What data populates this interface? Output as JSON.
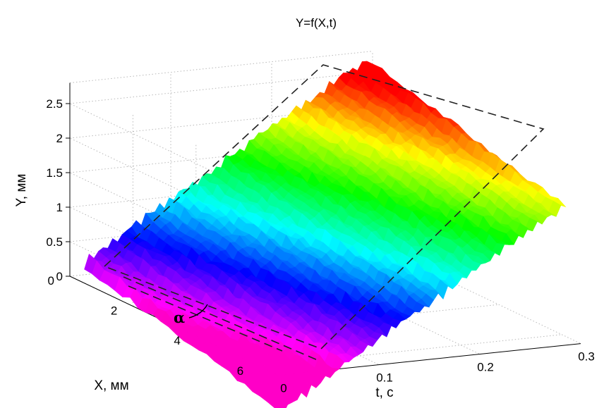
{
  "chart_data": {
    "type": "surface",
    "title": "Y=f(X,t)",
    "xlabel": "X, мм",
    "tlabel": "t, с",
    "ylabel": "Y, мм",
    "annotation": "α",
    "x_ticks": [
      "0",
      "2",
      "4",
      "6"
    ],
    "t_ticks": [
      "0",
      "0.1",
      "0.2",
      "0.3"
    ],
    "y_ticks": [
      "0",
      "0.5",
      "1",
      "1.5",
      "2",
      "2.5"
    ],
    "x_range": [
      0,
      6.6
    ],
    "t_range": [
      0,
      0.3
    ],
    "y_range": [
      0,
      2.8
    ],
    "grid": true,
    "colormap": "hsv",
    "surface": {
      "description_model": "Y increases linearly with t and decreases with X (traveling ramp with rough ridges)",
      "y_at_t0_x0": 0.15,
      "slope_t": 9.0,
      "slope_x": -0.12,
      "roughness": 0.12
    },
    "colors": {
      "dashed_outline": "#222222",
      "grid": "#b8b8b8"
    }
  }
}
